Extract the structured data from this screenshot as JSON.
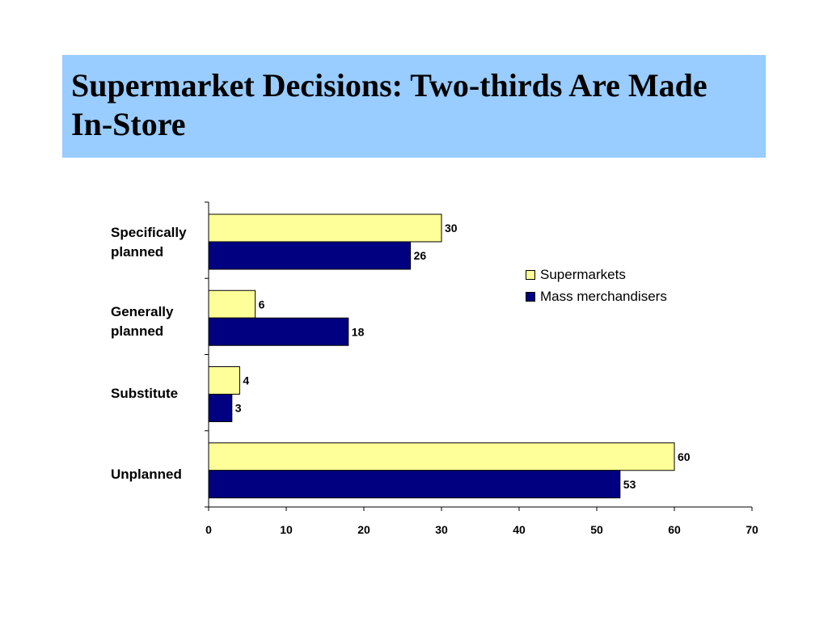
{
  "title": "Supermarket Decisions: Two-thirds Are Made In-Store",
  "colors": {
    "title_background": "#99ccff",
    "supermarkets": "#ffff99",
    "mass_merchandisers": "#000080"
  },
  "chart_data": {
    "type": "bar",
    "orientation": "horizontal",
    "categories": [
      "Specifically planned",
      "Generally planned",
      "Substitute",
      "Unplanned"
    ],
    "category_labels": [
      [
        "Specifically",
        "planned"
      ],
      [
        "Generally",
        "planned"
      ],
      [
        "Substitute"
      ],
      [
        "Unplanned"
      ]
    ],
    "series": [
      {
        "name": "Supermarkets",
        "values": [
          30,
          6,
          4,
          60
        ]
      },
      {
        "name": "Mass merchandisers",
        "values": [
          26,
          18,
          3,
          53
        ]
      }
    ],
    "xlim": [
      0,
      70
    ],
    "xticks": [
      0,
      10,
      20,
      30,
      40,
      50,
      60,
      70
    ],
    "grid": false,
    "legend_position": "right",
    "data_labels": true
  }
}
